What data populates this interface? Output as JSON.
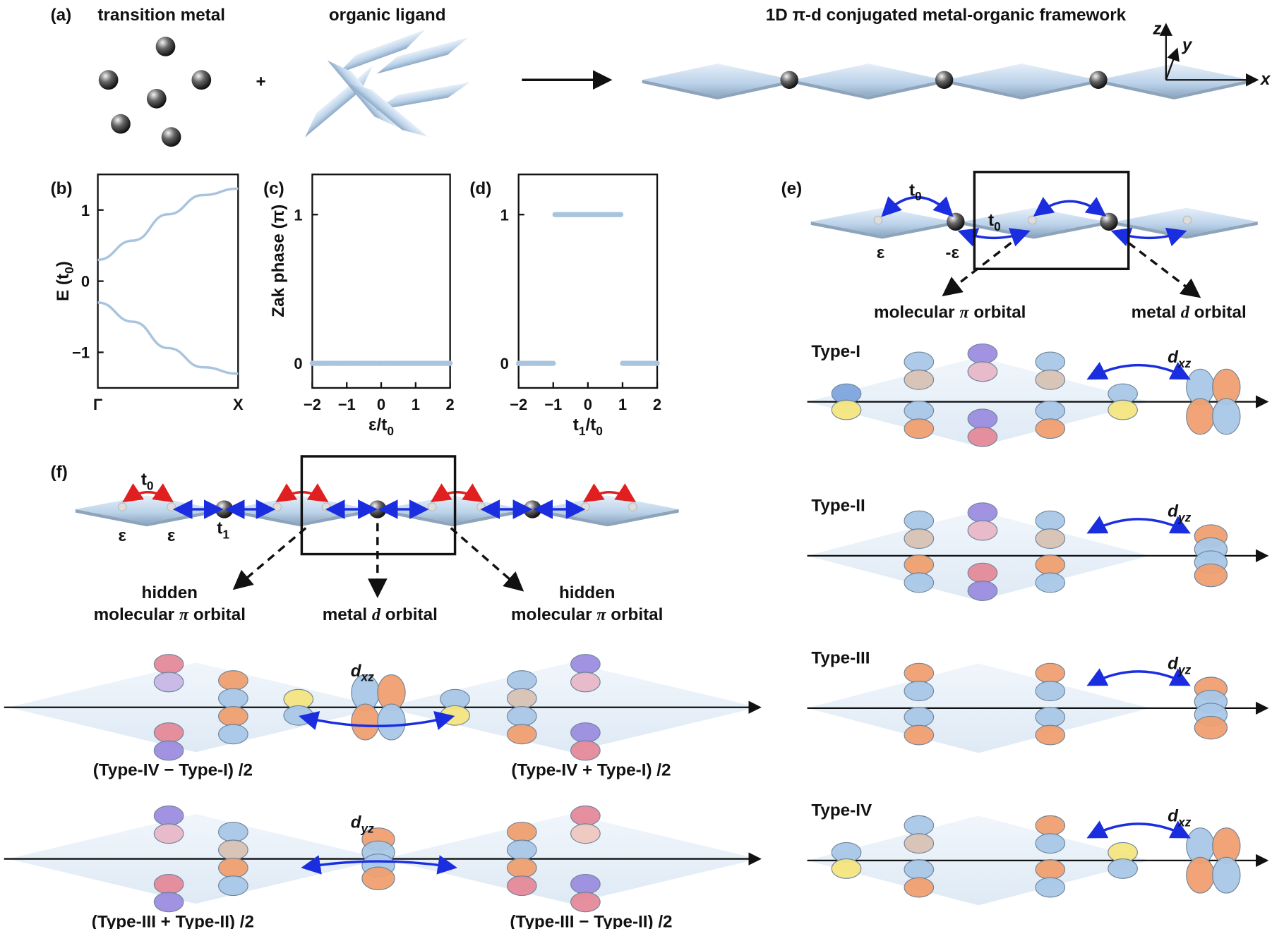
{
  "panel_labels": {
    "a": "(a)",
    "b": "(b)",
    "c": "(c)",
    "d": "(d)",
    "e": "(e)",
    "f": "(f)"
  },
  "panel_a": {
    "transition_metal": "transition metal",
    "organic_ligand": "organic ligand",
    "plus": "+",
    "framework_title": "1D π-d conjugated metal-organic framework",
    "axes": {
      "x": "x",
      "y": "y",
      "z": "z"
    }
  },
  "colors": {
    "band_line": "#a9c4de",
    "plate": "#cfe0f0",
    "lobe_blue": "#a9c8e8",
    "lobe_orange": "#f0a070",
    "lobe_purple": "#9c8ee0",
    "lobe_pink": "#e58a9a",
    "lobe_yellow": "#f5e680",
    "lobe_tan": "#d9c2b5",
    "hopping_blue": "#1a2ee0",
    "hopping_red": "#e02020"
  },
  "chart_data": [
    {
      "panel": "(b)",
      "type": "line",
      "xlabel": "",
      "ylabel": {
        "base": "E (t",
        "sub": "0",
        "end": ")"
      },
      "xticks": [
        "Γ",
        "X"
      ],
      "x": [
        0,
        0.25,
        0.5,
        0.75,
        1
      ],
      "yticks": [
        "1",
        "0",
        "−1"
      ],
      "ylim": [
        -1.5,
        1.5
      ],
      "series": [
        {
          "values": [
            0.3,
            0.57,
            0.94,
            1.21,
            1.3
          ]
        },
        {
          "values": [
            -0.3,
            -0.57,
            -0.94,
            -1.21,
            -1.3
          ]
        }
      ]
    },
    {
      "panel": "(c)",
      "type": "scatter",
      "xlabel": {
        "base": "ε/t",
        "sub": "0"
      },
      "ylabel": "Zak phase (π)",
      "xticks": [
        "−2",
        "−1",
        "0",
        "1",
        "2"
      ],
      "yticks": [
        "0",
        "1"
      ],
      "xlim": [
        -2,
        2
      ],
      "ylim": [
        -0.165,
        1.27
      ],
      "segments": [
        {
          "x_from": -2,
          "x_to": 2,
          "y": 0
        }
      ],
      "x_step": 0.05
    },
    {
      "panel": "(d)",
      "type": "scatter",
      "xlabel": {
        "base": "t",
        "sub": "1",
        "mid": "/t",
        "sub2": "0"
      },
      "xticks": [
        "−2",
        "−1",
        "0",
        "1",
        "2"
      ],
      "yticks": [
        "0",
        "1"
      ],
      "xlim": [
        -2,
        2
      ],
      "ylim": [
        -0.165,
        1.27
      ],
      "segments": [
        {
          "x_from": -2,
          "x_to": -1,
          "y": 0
        },
        {
          "x_from": -0.95,
          "x_to": 0.95,
          "y": 1
        },
        {
          "x_from": 1,
          "x_to": 2,
          "y": 0
        }
      ],
      "x_step": 0.05
    }
  ],
  "panel_e": {
    "t0": {
      "base": "t",
      "sub": "0"
    },
    "eps": "ε",
    "neg_eps": "-ε",
    "molecular_pi": {
      "text": "molecular ",
      "italic": "π",
      "end": " orbital"
    },
    "metal_d": {
      "text": "metal ",
      "italic": "d",
      "end": " orbital"
    },
    "types": [
      "Type-I",
      "Type-II",
      "Type-III",
      "Type-IV"
    ],
    "d_labels": [
      {
        "base": "d",
        "sub": "xz"
      },
      {
        "base": "d",
        "sub": "yz"
      },
      {
        "base": "d",
        "sub": "yz"
      },
      {
        "base": "d",
        "sub": "xz"
      }
    ]
  },
  "panel_f": {
    "t0": {
      "base": "t",
      "sub": "0"
    },
    "t1": {
      "base": "t",
      "sub": "1"
    },
    "eps": "ε",
    "hidden": "hidden",
    "hidden_pi": {
      "text": "molecular ",
      "italic": "π",
      "end": " orbital"
    },
    "metal_d": {
      "text": "metal ",
      "italic": "d",
      "end": " orbital"
    },
    "row1": {
      "d": {
        "base": "d",
        "sub": "xz"
      },
      "left": "(Type-IV − Type-I) /2",
      "right": "(Type-IV + Type-I) /2"
    },
    "row2": {
      "d": {
        "base": "d",
        "sub": "yz"
      },
      "left": "(Type-III + Type-II) /2",
      "right": "(Type-III − Type-II) /2"
    }
  }
}
